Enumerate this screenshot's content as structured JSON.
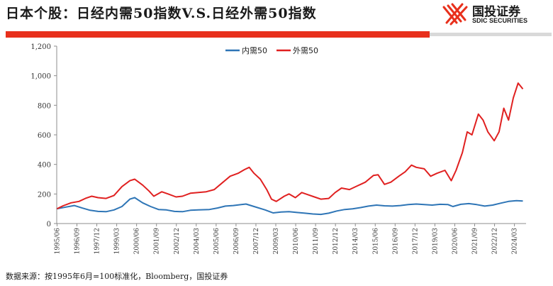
{
  "header": {
    "title": "日本个股：日经内需50指数V.S.日经外需50指数",
    "logo_name": "国投证券",
    "logo_en": "SDIC SECURITIES"
  },
  "footer": {
    "source": "数据来源：按1995年6月=100标准化，Bloomberg，国投证券"
  },
  "colors": {
    "domestic": "#2e75b6",
    "external": "#e02020",
    "accent_bar": "#e8301c"
  },
  "chart_data": {
    "type": "line",
    "legend_position": "top-center",
    "grid": false,
    "ylim": [
      0,
      1200
    ],
    "yticks": [
      "0",
      "200",
      "400",
      "600",
      "800",
      "1,000",
      "1,200"
    ],
    "xlim": [
      1995.4,
      2024.9
    ],
    "xtick_labels": [
      "1995/06",
      "1996/09",
      "1997/12",
      "1999/03",
      "2000/06",
      "2001/09",
      "2002/12",
      "2004/03",
      "2005/06",
      "2006/09",
      "2007/12",
      "2009/03",
      "2010/06",
      "2011/09",
      "2012/12",
      "2014/03",
      "2015/06",
      "2016/09",
      "2017/12",
      "2019/03",
      "2020/06",
      "2021/09",
      "2022/12",
      "2024/03"
    ],
    "series": [
      {
        "name": "内需50",
        "color": "#2e75b6",
        "points": [
          [
            1995.42,
            100
          ],
          [
            1996.0,
            112
          ],
          [
            1996.5,
            122
          ],
          [
            1997.0,
            105
          ],
          [
            1997.5,
            90
          ],
          [
            1998.0,
            82
          ],
          [
            1998.5,
            80
          ],
          [
            1999.0,
            92
          ],
          [
            1999.5,
            115
          ],
          [
            2000.0,
            165
          ],
          [
            2000.3,
            175
          ],
          [
            2000.8,
            140
          ],
          [
            2001.3,
            115
          ],
          [
            2001.8,
            95
          ],
          [
            2002.3,
            92
          ],
          [
            2002.8,
            82
          ],
          [
            2003.3,
            80
          ],
          [
            2003.8,
            90
          ],
          [
            2004.3,
            92
          ],
          [
            2005.0,
            95
          ],
          [
            2005.5,
            105
          ],
          [
            2006.0,
            118
          ],
          [
            2006.5,
            122
          ],
          [
            2007.0,
            128
          ],
          [
            2007.3,
            132
          ],
          [
            2007.8,
            115
          ],
          [
            2008.5,
            92
          ],
          [
            2009.0,
            72
          ],
          [
            2009.5,
            78
          ],
          [
            2010.0,
            80
          ],
          [
            2010.5,
            75
          ],
          [
            2011.0,
            70
          ],
          [
            2011.5,
            65
          ],
          [
            2012.0,
            62
          ],
          [
            2012.5,
            70
          ],
          [
            2013.0,
            85
          ],
          [
            2013.5,
            95
          ],
          [
            2014.0,
            100
          ],
          [
            2014.5,
            108
          ],
          [
            2015.0,
            118
          ],
          [
            2015.5,
            125
          ],
          [
            2016.0,
            120
          ],
          [
            2016.5,
            118
          ],
          [
            2017.0,
            122
          ],
          [
            2017.5,
            128
          ],
          [
            2018.0,
            132
          ],
          [
            2018.5,
            128
          ],
          [
            2019.0,
            125
          ],
          [
            2019.5,
            130
          ],
          [
            2020.0,
            128
          ],
          [
            2020.3,
            115
          ],
          [
            2020.8,
            130
          ],
          [
            2021.3,
            135
          ],
          [
            2021.8,
            128
          ],
          [
            2022.3,
            118
          ],
          [
            2022.8,
            125
          ],
          [
            2023.3,
            138
          ],
          [
            2023.8,
            150
          ],
          [
            2024.3,
            155
          ],
          [
            2024.7,
            152
          ]
        ]
      },
      {
        "name": "外需50",
        "color": "#e02020",
        "points": [
          [
            1995.42,
            100
          ],
          [
            1995.8,
            120
          ],
          [
            1996.3,
            140
          ],
          [
            1996.8,
            150
          ],
          [
            1997.2,
            170
          ],
          [
            1997.6,
            185
          ],
          [
            1998.0,
            175
          ],
          [
            1998.5,
            170
          ],
          [
            1999.0,
            190
          ],
          [
            1999.5,
            250
          ],
          [
            2000.0,
            290
          ],
          [
            2000.3,
            300
          ],
          [
            2000.8,
            260
          ],
          [
            2001.2,
            220
          ],
          [
            2001.5,
            185
          ],
          [
            2002.0,
            215
          ],
          [
            2002.4,
            200
          ],
          [
            2002.9,
            180
          ],
          [
            2003.3,
            185
          ],
          [
            2003.8,
            205
          ],
          [
            2004.3,
            210
          ],
          [
            2004.8,
            215
          ],
          [
            2005.3,
            230
          ],
          [
            2005.8,
            275
          ],
          [
            2006.3,
            320
          ],
          [
            2006.8,
            340
          ],
          [
            2007.2,
            365
          ],
          [
            2007.5,
            380
          ],
          [
            2007.8,
            340
          ],
          [
            2008.2,
            300
          ],
          [
            2008.6,
            230
          ],
          [
            2008.9,
            165
          ],
          [
            2009.2,
            150
          ],
          [
            2009.7,
            185
          ],
          [
            2010.0,
            200
          ],
          [
            2010.4,
            175
          ],
          [
            2010.8,
            210
          ],
          [
            2011.2,
            195
          ],
          [
            2011.6,
            180
          ],
          [
            2012.0,
            165
          ],
          [
            2012.5,
            170
          ],
          [
            2012.9,
            210
          ],
          [
            2013.3,
            240
          ],
          [
            2013.8,
            230
          ],
          [
            2014.3,
            255
          ],
          [
            2014.8,
            280
          ],
          [
            2015.3,
            325
          ],
          [
            2015.6,
            330
          ],
          [
            2016.0,
            265
          ],
          [
            2016.4,
            280
          ],
          [
            2016.9,
            320
          ],
          [
            2017.3,
            350
          ],
          [
            2017.7,
            395
          ],
          [
            2018.0,
            380
          ],
          [
            2018.5,
            370
          ],
          [
            2018.9,
            320
          ],
          [
            2019.3,
            340
          ],
          [
            2019.8,
            360
          ],
          [
            2020.2,
            290
          ],
          [
            2020.5,
            360
          ],
          [
            2020.9,
            480
          ],
          [
            2021.2,
            620
          ],
          [
            2021.5,
            600
          ],
          [
            2021.9,
            740
          ],
          [
            2022.2,
            700
          ],
          [
            2022.5,
            620
          ],
          [
            2022.9,
            560
          ],
          [
            2023.2,
            620
          ],
          [
            2023.5,
            780
          ],
          [
            2023.8,
            700
          ],
          [
            2024.1,
            850
          ],
          [
            2024.4,
            950
          ],
          [
            2024.7,
            910
          ]
        ]
      }
    ]
  }
}
